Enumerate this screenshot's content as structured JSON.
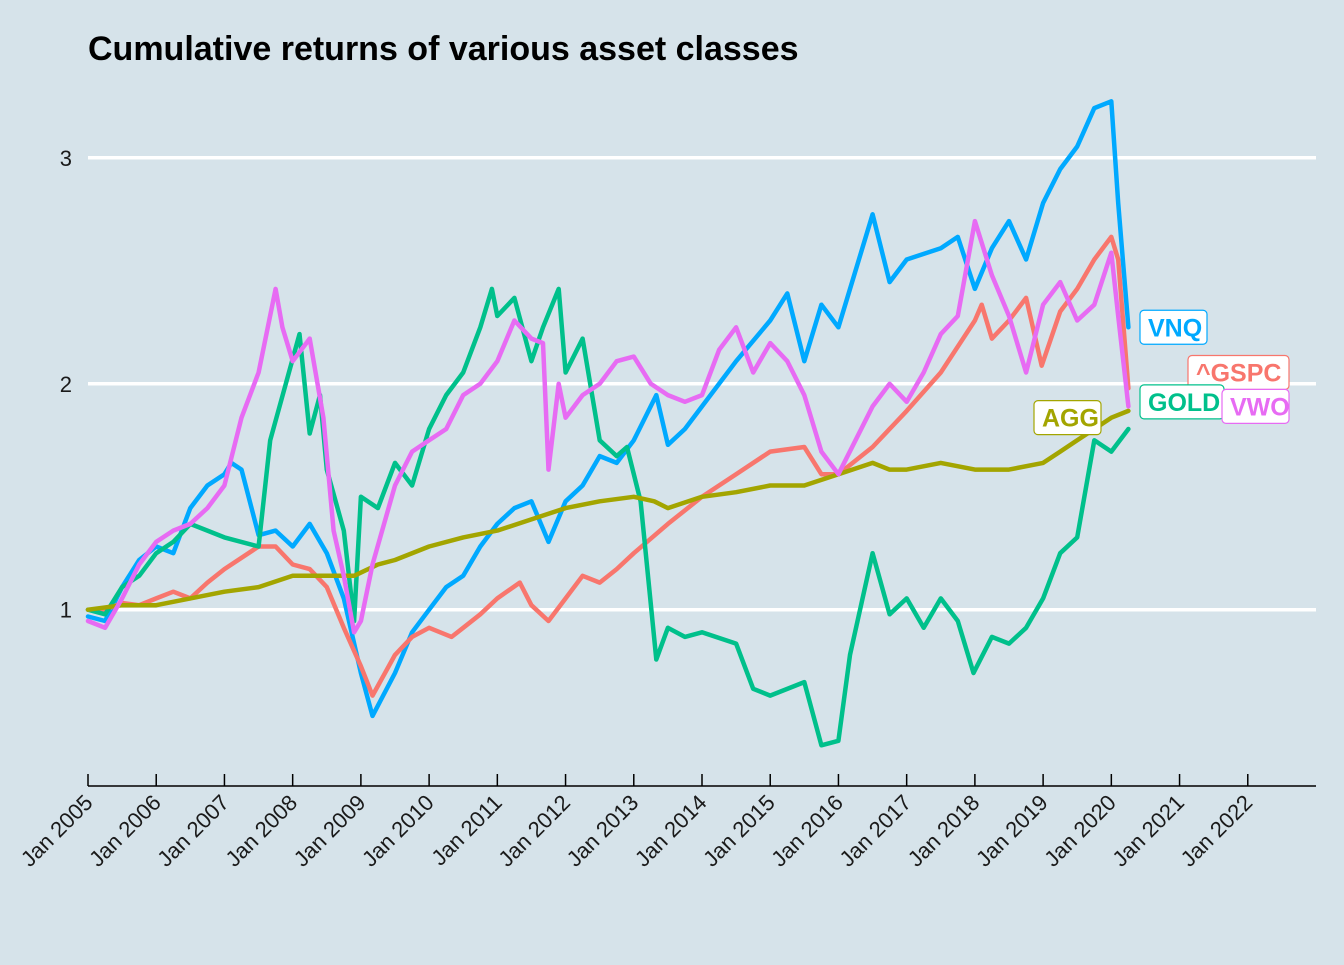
{
  "chart_data": {
    "type": "line",
    "title": "Cumulative returns of various asset classes",
    "xlabel": "",
    "ylabel": "",
    "y_ticks": [
      1,
      2,
      3
    ],
    "y_tick_labels": [
      "1",
      "2",
      "3"
    ],
    "ylim": [
      0.22,
      3.3
    ],
    "x_tick_labels": [
      "Jan 2005",
      "Jan 2006",
      "Jan 2007",
      "Jan 2008",
      "Jan 2009",
      "Jan 2010",
      "Jan 2011",
      "Jan 2012",
      "Jan 2013",
      "Jan 2014",
      "Jan 2015",
      "Jan 2016",
      "Jan 2017",
      "Jan 2018",
      "Jan 2019",
      "Jan 2020",
      "Jan 2021",
      "Jan 2022"
    ],
    "x_ticks": [
      2005,
      2006,
      2007,
      2008,
      2009,
      2010,
      2011,
      2012,
      2013,
      2014,
      2015,
      2016,
      2017,
      2018,
      2019,
      2020,
      2021,
      2022
    ],
    "xlim": [
      2005,
      2023
    ],
    "grid": "horizontal major lines",
    "legend": "direct labels at line ends",
    "series": [
      {
        "name": "VNQ",
        "color": "#00a9ff",
        "x": [
          2005.0,
          2005.25,
          2005.5,
          2005.75,
          2006.0,
          2006.25,
          2006.5,
          2006.75,
          2007.0,
          2007.1,
          2007.25,
          2007.5,
          2007.75,
          2008.0,
          2008.25,
          2008.5,
          2008.75,
          2009.0,
          2009.17,
          2009.5,
          2009.75,
          2010.0,
          2010.25,
          2010.5,
          2010.75,
          2011.0,
          2011.25,
          2011.5,
          2011.75,
          2012.0,
          2012.25,
          2012.5,
          2012.75,
          2013.0,
          2013.33,
          2013.5,
          2013.75,
          2014.0,
          2014.5,
          2015.0,
          2015.25,
          2015.5,
          2015.75,
          2016.0,
          2016.5,
          2016.75,
          2017.0,
          2017.5,
          2017.75,
          2018.0,
          2018.25,
          2018.5,
          2018.75,
          2019.0,
          2019.25,
          2019.5,
          2019.75,
          2020.0,
          2020.1,
          2020.25
        ],
        "y": [
          0.97,
          0.95,
          1.1,
          1.22,
          1.28,
          1.25,
          1.45,
          1.55,
          1.6,
          1.65,
          1.62,
          1.33,
          1.35,
          1.28,
          1.38,
          1.25,
          1.05,
          0.72,
          0.53,
          0.72,
          0.9,
          1.0,
          1.1,
          1.15,
          1.28,
          1.38,
          1.45,
          1.48,
          1.3,
          1.48,
          1.55,
          1.68,
          1.65,
          1.75,
          1.95,
          1.73,
          1.8,
          1.9,
          2.1,
          2.28,
          2.4,
          2.1,
          2.35,
          2.25,
          2.75,
          2.45,
          2.55,
          2.6,
          2.65,
          2.42,
          2.6,
          2.72,
          2.55,
          2.8,
          2.95,
          3.05,
          3.22,
          3.25,
          2.8,
          2.25
        ]
      },
      {
        "name": "^GSPC",
        "color": "#f8766d",
        "x": [
          2005.0,
          2005.25,
          2005.5,
          2005.75,
          2006.0,
          2006.25,
          2006.5,
          2006.75,
          2007.0,
          2007.5,
          2007.75,
          2008.0,
          2008.25,
          2008.5,
          2008.75,
          2009.0,
          2009.17,
          2009.5,
          2009.75,
          2010.0,
          2010.33,
          2010.5,
          2010.75,
          2011.0,
          2011.33,
          2011.5,
          2011.75,
          2012.0,
          2012.25,
          2012.5,
          2012.75,
          2013.0,
          2013.5,
          2014.0,
          2014.5,
          2015.0,
          2015.5,
          2015.75,
          2016.0,
          2016.5,
          2017.0,
          2017.5,
          2018.0,
          2018.1,
          2018.25,
          2018.5,
          2018.75,
          2018.98,
          2019.25,
          2019.5,
          2019.75,
          2020.0,
          2020.1,
          2020.25
        ],
        "y": [
          1.0,
          1.0,
          1.03,
          1.02,
          1.05,
          1.08,
          1.05,
          1.12,
          1.18,
          1.28,
          1.28,
          1.2,
          1.18,
          1.1,
          0.92,
          0.75,
          0.62,
          0.8,
          0.88,
          0.92,
          0.88,
          0.92,
          0.98,
          1.05,
          1.12,
          1.02,
          0.95,
          1.05,
          1.15,
          1.12,
          1.18,
          1.25,
          1.38,
          1.5,
          1.6,
          1.7,
          1.72,
          1.6,
          1.6,
          1.72,
          1.88,
          2.05,
          2.28,
          2.35,
          2.2,
          2.28,
          2.38,
          2.08,
          2.32,
          2.42,
          2.55,
          2.65,
          2.55,
          1.98
        ]
      },
      {
        "name": "GOLD",
        "color": "#00c08b",
        "x": [
          2005.0,
          2005.25,
          2005.5,
          2005.75,
          2006.0,
          2006.25,
          2006.5,
          2006.75,
          2007.0,
          2007.5,
          2007.67,
          2007.9,
          2008.1,
          2008.25,
          2008.4,
          2008.5,
          2008.75,
          2008.9,
          2009.0,
          2009.25,
          2009.5,
          2009.75,
          2010.0,
          2010.25,
          2010.5,
          2010.75,
          2010.92,
          2011.0,
          2011.25,
          2011.5,
          2011.67,
          2011.9,
          2012.0,
          2012.25,
          2012.5,
          2012.75,
          2012.9,
          2013.1,
          2013.33,
          2013.5,
          2013.75,
          2014.0,
          2014.5,
          2014.75,
          2015.0,
          2015.5,
          2015.75,
          2016.0,
          2016.17,
          2016.5,
          2016.75,
          2017.0,
          2017.25,
          2017.5,
          2017.75,
          2017.98,
          2018.25,
          2018.5,
          2018.75,
          2019.0,
          2019.25,
          2019.5,
          2019.75,
          2020.0,
          2020.25
        ],
        "y": [
          1.0,
          0.98,
          1.1,
          1.15,
          1.25,
          1.3,
          1.38,
          1.35,
          1.32,
          1.28,
          1.75,
          2.0,
          2.22,
          1.78,
          1.95,
          1.62,
          1.35,
          0.95,
          1.5,
          1.45,
          1.65,
          1.55,
          1.8,
          1.95,
          2.05,
          2.25,
          2.42,
          2.3,
          2.38,
          2.1,
          2.25,
          2.42,
          2.05,
          2.2,
          1.75,
          1.68,
          1.72,
          1.48,
          0.78,
          0.92,
          0.88,
          0.9,
          0.85,
          0.65,
          0.62,
          0.68,
          0.4,
          0.42,
          0.8,
          1.25,
          0.98,
          1.05,
          0.92,
          1.05,
          0.95,
          0.72,
          0.88,
          0.85,
          0.92,
          1.05,
          1.25,
          1.32,
          1.75,
          1.7,
          1.8
        ]
      },
      {
        "name": "AGG",
        "color": "#a3a500",
        "x": [
          2005.0,
          2005.5,
          2006.0,
          2006.5,
          2007.0,
          2007.5,
          2008.0,
          2008.5,
          2008.9,
          2009.25,
          2009.5,
          2010.0,
          2010.5,
          2011.0,
          2011.5,
          2012.0,
          2012.5,
          2013.0,
          2013.3,
          2013.5,
          2014.0,
          2014.5,
          2015.0,
          2015.5,
          2016.0,
          2016.5,
          2016.75,
          2017.0,
          2017.5,
          2018.0,
          2018.5,
          2019.0,
          2019.25,
          2019.5,
          2019.75,
          2020.0,
          2020.25
        ],
        "y": [
          1.0,
          1.02,
          1.02,
          1.05,
          1.08,
          1.1,
          1.15,
          1.15,
          1.15,
          1.2,
          1.22,
          1.28,
          1.32,
          1.35,
          1.4,
          1.45,
          1.48,
          1.5,
          1.48,
          1.45,
          1.5,
          1.52,
          1.55,
          1.55,
          1.6,
          1.65,
          1.62,
          1.62,
          1.65,
          1.62,
          1.62,
          1.65,
          1.7,
          1.75,
          1.8,
          1.85,
          1.88
        ]
      },
      {
        "name": "VWO",
        "color": "#e76bf3",
        "x": [
          2005.0,
          2005.25,
          2005.5,
          2005.75,
          2006.0,
          2006.25,
          2006.5,
          2006.75,
          2007.0,
          2007.25,
          2007.5,
          2007.75,
          2007.85,
          2008.0,
          2008.25,
          2008.45,
          2008.6,
          2008.75,
          2008.9,
          2009.0,
          2009.17,
          2009.5,
          2009.75,
          2010.0,
          2010.25,
          2010.5,
          2010.75,
          2011.0,
          2011.25,
          2011.5,
          2011.67,
          2011.75,
          2011.9,
          2012.0,
          2012.25,
          2012.5,
          2012.75,
          2013.0,
          2013.25,
          2013.5,
          2013.75,
          2014.0,
          2014.25,
          2014.5,
          2014.75,
          2015.0,
          2015.25,
          2015.5,
          2015.75,
          2016.0,
          2016.25,
          2016.5,
          2016.75,
          2017.0,
          2017.25,
          2017.5,
          2017.75,
          2018.0,
          2018.25,
          2018.5,
          2018.75,
          2019.0,
          2019.25,
          2019.5,
          2019.75,
          2020.0,
          2020.1,
          2020.25
        ],
        "y": [
          0.95,
          0.92,
          1.05,
          1.2,
          1.3,
          1.35,
          1.38,
          1.45,
          1.55,
          1.85,
          2.05,
          2.42,
          2.25,
          2.1,
          2.2,
          1.85,
          1.35,
          1.15,
          0.9,
          0.95,
          1.2,
          1.55,
          1.7,
          1.75,
          1.8,
          1.95,
          2.0,
          2.1,
          2.28,
          2.2,
          2.18,
          1.62,
          2.0,
          1.85,
          1.95,
          2.0,
          2.1,
          2.12,
          2.0,
          1.95,
          1.92,
          1.95,
          2.15,
          2.25,
          2.05,
          2.18,
          2.1,
          1.95,
          1.7,
          1.6,
          1.75,
          1.9,
          2.0,
          1.92,
          2.05,
          2.22,
          2.3,
          2.72,
          2.48,
          2.3,
          2.05,
          2.35,
          2.45,
          2.28,
          2.35,
          2.58,
          2.3,
          1.9
        ]
      }
    ],
    "end_labels": [
      {
        "series": "VNQ",
        "text": "VNQ",
        "at_y": 2.25
      },
      {
        "series": "^GSPC",
        "text": "^GSPC",
        "at_y": 2.05
      },
      {
        "series": "GOLD",
        "text": "GOLD",
        "at_y": 1.92
      },
      {
        "series": "AGG",
        "text": "AGG",
        "at_y": 1.85
      },
      {
        "series": "VWO",
        "text": "VWO",
        "at_y": 1.9
      }
    ]
  }
}
